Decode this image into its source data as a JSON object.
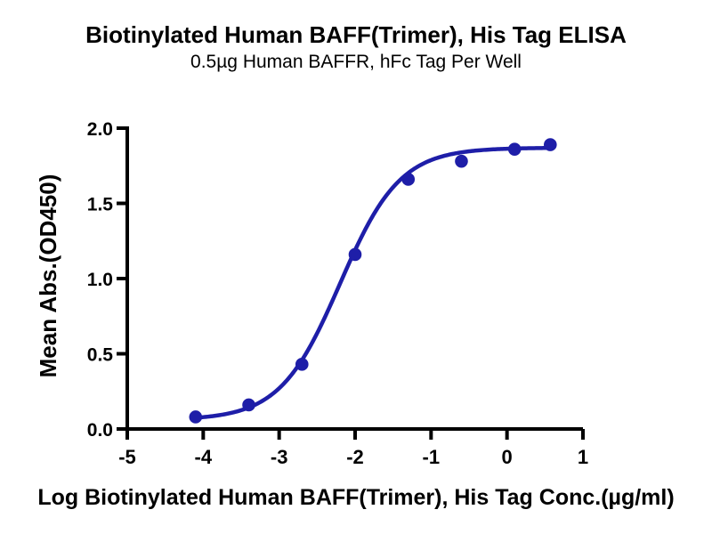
{
  "chart_data": {
    "type": "scatter",
    "title": "Biotinylated Human BAFF(Trimer), His Tag ELISA",
    "subtitle": "0.5µg Human BAFFR, hFc Tag Per Well",
    "xlabel": "Log Biotinylated Human BAFF(Trimer), His Tag Conc.(µg/ml)",
    "ylabel": "Mean Abs.(OD450)",
    "xlim": [
      -5,
      1
    ],
    "ylim": [
      0,
      2
    ],
    "x_ticks": [
      -5,
      -4,
      -3,
      -2,
      -1,
      0,
      1
    ],
    "y_ticks": [
      0,
      0.5,
      1,
      1.5,
      2
    ],
    "points": {
      "x": [
        -4.1,
        -3.4,
        -2.7,
        -2.0,
        -1.3,
        -0.6,
        0.1,
        0.57
      ],
      "y": [
        0.08,
        0.16,
        0.43,
        1.16,
        1.66,
        1.78,
        1.86,
        1.89
      ]
    },
    "fit_curve": {
      "model": "4PL",
      "bottom": 0.06,
      "top": 1.87,
      "log_ec50": -2.2,
      "hill_slope": 1.1,
      "x_range": [
        -4.1,
        0.57
      ]
    },
    "grid": false,
    "legend": false,
    "colors": {
      "series": "#1e1ea8",
      "axis": "#000000",
      "text": "#000000",
      "background": "#ffffff"
    }
  }
}
